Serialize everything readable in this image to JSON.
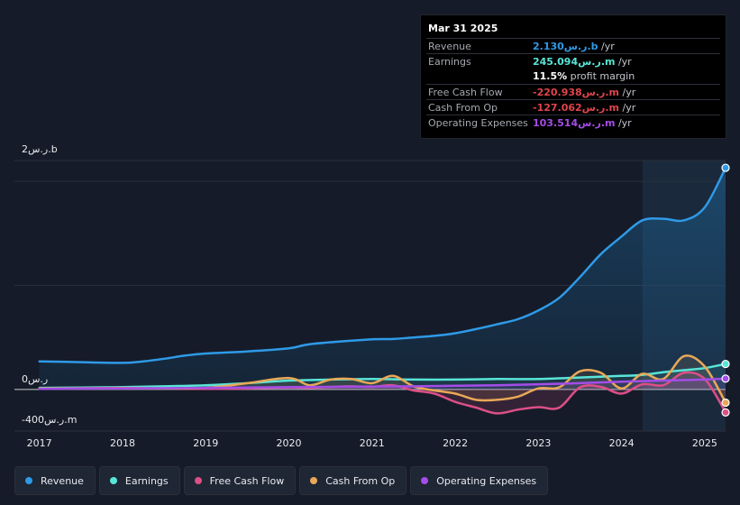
{
  "chart_data": {
    "type": "area",
    "title": "",
    "y_axis": {
      "unit": "ر.س",
      "ylim": [
        -400000000,
        2200000000
      ],
      "tick_labels": [
        "2ر.س.b",
        "0ر.س",
        "-400ر.س.m"
      ]
    },
    "x_axis": {
      "tick_labels": [
        "2017",
        "2018",
        "2019",
        "2020",
        "2021",
        "2022",
        "2023",
        "2024",
        "2025"
      ],
      "xlim": [
        2016.7,
        2025.25
      ]
    },
    "highlight_range": [
      2024.25,
      2025.25
    ],
    "grid": true,
    "legend_placement": "bottom-left",
    "series": [
      {
        "name": "Revenue",
        "color": "#2f9ae7",
        "x": [
          2017.0,
          2017.5,
          2018.0,
          2018.25,
          2018.5,
          2018.75,
          2019.0,
          2019.5,
          2020.0,
          2020.25,
          2020.75,
          2021.0,
          2021.25,
          2021.5,
          2021.75,
          2022.0,
          2022.25,
          2022.5,
          2022.75,
          2023.0,
          2023.25,
          2023.5,
          2023.75,
          2024.0,
          2024.25,
          2024.5,
          2024.75,
          2025.0,
          2025.25
        ],
        "y": [
          270000000,
          262000000,
          255000000,
          270000000,
          295000000,
          325000000,
          345000000,
          365000000,
          395000000,
          435000000,
          468000000,
          482000000,
          485000000,
          500000000,
          515000000,
          540000000,
          580000000,
          625000000,
          675000000,
          760000000,
          880000000,
          1080000000,
          1300000000,
          1470000000,
          1625000000,
          1640000000,
          1625000000,
          1750000000,
          2130000000
        ]
      },
      {
        "name": "Earnings",
        "color": "#58e5d7",
        "x": [
          2017.0,
          2017.5,
          2018.0,
          2018.5,
          2019.0,
          2019.5,
          2020.0,
          2020.5,
          2021.0,
          2021.5,
          2022.0,
          2022.5,
          2023.0,
          2023.5,
          2024.0,
          2024.25,
          2024.5,
          2024.75,
          2025.0,
          2025.25
        ],
        "y": [
          15000000,
          18000000,
          22000000,
          30000000,
          40000000,
          60000000,
          85000000,
          95000000,
          100000000,
          95000000,
          95000000,
          100000000,
          100000000,
          115000000,
          130000000,
          140000000,
          165000000,
          185000000,
          205000000,
          245094000
        ]
      },
      {
        "name": "Free Cash Flow",
        "color": "#dc4f87",
        "x": [
          2017.0,
          2017.5,
          2018.0,
          2018.5,
          2019.0,
          2019.5,
          2020.0,
          2020.25,
          2020.5,
          2020.75,
          2021.0,
          2021.25,
          2021.5,
          2021.75,
          2022.0,
          2022.25,
          2022.5,
          2022.75,
          2023.0,
          2023.25,
          2023.5,
          2023.75,
          2024.0,
          2024.25,
          2024.5,
          2024.75,
          2025.0,
          2025.25
        ],
        "y": [
          10000000,
          12000000,
          15000000,
          10000000,
          5000000,
          10000000,
          20000000,
          15000000,
          25000000,
          30000000,
          25000000,
          40000000,
          -10000000,
          -40000000,
          -120000000,
          -175000000,
          -230000000,
          -195000000,
          -170000000,
          -175000000,
          20000000,
          25000000,
          -40000000,
          50000000,
          40000000,
          160000000,
          100000000,
          -220938000
        ]
      },
      {
        "name": "Cash From Op",
        "color": "#e9a857",
        "x": [
          2017.0,
          2017.5,
          2018.0,
          2018.5,
          2019.0,
          2019.5,
          2020.0,
          2020.25,
          2020.5,
          2020.75,
          2021.0,
          2021.25,
          2021.5,
          2021.75,
          2022.0,
          2022.25,
          2022.5,
          2022.75,
          2023.0,
          2023.25,
          2023.5,
          2023.75,
          2024.0,
          2024.25,
          2024.5,
          2024.75,
          2025.0,
          2025.25
        ],
        "y": [
          10000000,
          10000000,
          12000000,
          10000000,
          15000000,
          60000000,
          110000000,
          40000000,
          95000000,
          100000000,
          60000000,
          130000000,
          30000000,
          -10000000,
          -40000000,
          -100000000,
          -100000000,
          -70000000,
          10000000,
          20000000,
          175000000,
          160000000,
          10000000,
          150000000,
          100000000,
          320000000,
          220000000,
          -127062000
        ]
      },
      {
        "name": "Operating Expenses",
        "color": "#a44de8",
        "x": [
          2017.0,
          2017.5,
          2018.0,
          2018.5,
          2019.0,
          2019.5,
          2020.0,
          2020.5,
          2021.0,
          2021.5,
          2022.0,
          2022.5,
          2023.0,
          2023.5,
          2024.0,
          2024.5,
          2025.0,
          2025.25
        ],
        "y": [
          5000000,
          8000000,
          10000000,
          12000000,
          15000000,
          18000000,
          22000000,
          25000000,
          28000000,
          30000000,
          35000000,
          40000000,
          50000000,
          60000000,
          75000000,
          85000000,
          95000000,
          103514000
        ]
      }
    ]
  },
  "tooltip": {
    "date": "Mar 31 2025",
    "rows": [
      {
        "label": "Revenue",
        "value": "2.130ر.س.b",
        "unit": " /yr",
        "color": "#2f9ae7"
      },
      {
        "label": "Earnings",
        "value": "245.094ر.س.m",
        "unit": " /yr",
        "color": "#58e5d7"
      },
      {
        "label": "",
        "value": "11.5%",
        "unit": " profit margin",
        "color": "#ffffff"
      },
      {
        "label": "Free Cash Flow",
        "value": "-220.938ر.س.m",
        "unit": " /yr",
        "color": "#e2434b"
      },
      {
        "label": "Cash From Op",
        "value": "-127.062ر.س.m",
        "unit": " /yr",
        "color": "#e2434b"
      },
      {
        "label": "Operating Expenses",
        "value": "103.514ر.س.m",
        "unit": " /yr",
        "color": "#a44de8"
      }
    ]
  },
  "legend": [
    {
      "label": "Revenue",
      "color": "#2f9ae7"
    },
    {
      "label": "Earnings",
      "color": "#58e5d7"
    },
    {
      "label": "Free Cash Flow",
      "color": "#dc4f87"
    },
    {
      "label": "Cash From Op",
      "color": "#e9a857"
    },
    {
      "label": "Operating Expenses",
      "color": "#a44de8"
    }
  ]
}
